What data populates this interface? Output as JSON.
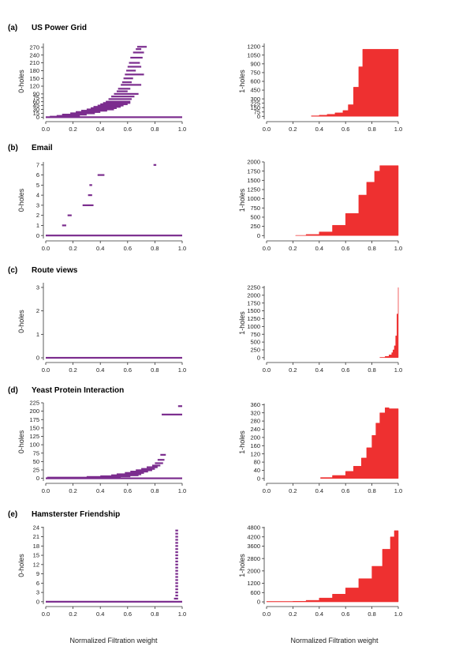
{
  "colors": {
    "zero": "#7b2d8e",
    "one": "#ee3030"
  },
  "xlabel": "Normalized Filtration weight",
  "panels": [
    {
      "label": "(a)",
      "title": "US Power Grid"
    },
    {
      "label": "(b)",
      "title": "Email"
    },
    {
      "label": "(c)",
      "title": "Route views"
    },
    {
      "label": "(d)",
      "title": "Yeast Protein Interaction"
    },
    {
      "label": "(e)",
      "title": "Hamsterster Friendship"
    }
  ],
  "chart_data": [
    {
      "type": "barcode",
      "panel": "(a)",
      "ylabel": "0-holes",
      "xlim": [
        0,
        1
      ],
      "ylim": [
        -8,
        285
      ],
      "xticks": [
        "0.0",
        "0.2",
        "0.4",
        "0.6",
        "0.8",
        "1.0"
      ],
      "yticks": [
        0,
        15,
        30,
        45,
        60,
        75,
        90,
        120,
        150,
        180,
        210,
        240,
        270
      ],
      "intervals": [
        [
          0,
          1.0,
          0
        ],
        [
          0.03,
          0.15,
          2
        ],
        [
          0.08,
          0.25,
          5
        ],
        [
          0.12,
          0.3,
          10
        ],
        [
          0.18,
          0.36,
          15
        ],
        [
          0.22,
          0.4,
          20
        ],
        [
          0.26,
          0.45,
          25
        ],
        [
          0.3,
          0.5,
          30
        ],
        [
          0.33,
          0.52,
          35
        ],
        [
          0.35,
          0.55,
          40
        ],
        [
          0.38,
          0.57,
          45
        ],
        [
          0.4,
          0.6,
          50
        ],
        [
          0.42,
          0.62,
          55
        ],
        [
          0.44,
          0.62,
          60
        ],
        [
          0.46,
          0.63,
          70
        ],
        [
          0.48,
          0.65,
          80
        ],
        [
          0.5,
          0.68,
          90
        ],
        [
          0.52,
          0.6,
          100
        ],
        [
          0.53,
          0.62,
          110
        ],
        [
          0.55,
          0.7,
          125
        ],
        [
          0.56,
          0.63,
          135
        ],
        [
          0.57,
          0.64,
          150
        ],
        [
          0.58,
          0.72,
          165
        ],
        [
          0.59,
          0.66,
          180
        ],
        [
          0.6,
          0.7,
          195
        ],
        [
          0.61,
          0.69,
          210
        ],
        [
          0.62,
          0.71,
          230
        ],
        [
          0.64,
          0.72,
          250
        ],
        [
          0.66,
          0.7,
          263
        ],
        [
          0.67,
          0.74,
          272
        ]
      ]
    },
    {
      "type": "area",
      "panel": "(a)",
      "ylabel": "1-holes",
      "xlim": [
        0,
        1
      ],
      "ylim": [
        -50,
        1250
      ],
      "xticks": [
        "0.0",
        "0.2",
        "0.4",
        "0.6",
        "0.8",
        "1.0"
      ],
      "yticks": [
        0,
        75,
        150,
        225,
        300,
        450,
        600,
        750,
        900,
        1050,
        1200
      ],
      "x": [
        0.34,
        0.4,
        0.46,
        0.52,
        0.58,
        0.62,
        0.66,
        0.7,
        0.73,
        1.0
      ],
      "y": [
        10,
        20,
        35,
        60,
        100,
        200,
        500,
        850,
        1150,
        1155
      ]
    },
    {
      "type": "barcode",
      "panel": "(b)",
      "ylabel": "0-holes",
      "xlim": [
        0,
        1
      ],
      "ylim": [
        -0.3,
        7.3
      ],
      "xticks": [
        "0.0",
        "0.2",
        "0.4",
        "0.6",
        "0.8",
        "1.0"
      ],
      "yticks": [
        0,
        1,
        2,
        3,
        4,
        5,
        6,
        7
      ],
      "intervals": [
        [
          0,
          1.0,
          0
        ],
        [
          0.12,
          0.15,
          1
        ],
        [
          0.16,
          0.19,
          2
        ],
        [
          0.27,
          0.35,
          3
        ],
        [
          0.31,
          0.34,
          4
        ],
        [
          0.32,
          0.34,
          5
        ],
        [
          0.38,
          0.43,
          6
        ],
        [
          0.79,
          0.81,
          7
        ]
      ]
    },
    {
      "type": "area",
      "panel": "(b)",
      "ylabel": "1-holes",
      "xlim": [
        0,
        1
      ],
      "ylim": [
        -80,
        2000
      ],
      "xticks": [
        "0.0",
        "0.2",
        "0.4",
        "0.6",
        "0.8",
        "1.0"
      ],
      "yticks": [
        0,
        250,
        500,
        750,
        1000,
        1250,
        1500,
        1750,
        2000
      ],
      "x": [
        0.22,
        0.3,
        0.4,
        0.5,
        0.6,
        0.7,
        0.76,
        0.82,
        0.86,
        1.0
      ],
      "y": [
        5,
        30,
        100,
        280,
        600,
        1100,
        1450,
        1750,
        1900,
        1900
      ]
    },
    {
      "type": "barcode",
      "panel": "(c)",
      "ylabel": "0-holes",
      "xlim": [
        0,
        1
      ],
      "ylim": [
        -0.1,
        3.2
      ],
      "xticks": [
        "0.0",
        "0.2",
        "0.4",
        "0.6",
        "0.8",
        "1.0"
      ],
      "yticks": [
        0,
        1,
        2,
        3
      ],
      "intervals": [
        [
          0,
          1.0,
          0
        ]
      ]
    },
    {
      "type": "area",
      "panel": "(c)",
      "ylabel": "1-holes",
      "xlim": [
        0,
        1
      ],
      "ylim": [
        -80,
        2300
      ],
      "xticks": [
        "0.0",
        "0.2",
        "0.4",
        "0.6",
        "0.8",
        "1.0"
      ],
      "yticks": [
        0,
        250,
        500,
        750,
        1000,
        1250,
        1500,
        1750,
        2000,
        2250
      ],
      "x": [
        0.86,
        0.9,
        0.93,
        0.95,
        0.96,
        0.97,
        0.98,
        0.99,
        1.0
      ],
      "y": [
        10,
        40,
        90,
        160,
        250,
        380,
        700,
        1400,
        2250
      ]
    },
    {
      "type": "barcode",
      "panel": "(d)",
      "ylabel": "0-holes",
      "xlim": [
        0,
        1
      ],
      "ylim": [
        -8,
        225
      ],
      "xticks": [
        "0.0",
        "0.2",
        "0.4",
        "0.6",
        "0.8",
        "1.0"
      ],
      "yticks": [
        0,
        25,
        50,
        75,
        100,
        125,
        150,
        175,
        200,
        225
      ],
      "intervals": [
        [
          0,
          1.0,
          0
        ],
        [
          0.01,
          0.35,
          2
        ],
        [
          0.3,
          0.55,
          4
        ],
        [
          0.4,
          0.62,
          6
        ],
        [
          0.48,
          0.68,
          9
        ],
        [
          0.52,
          0.7,
          12
        ],
        [
          0.58,
          0.72,
          16
        ],
        [
          0.62,
          0.75,
          20
        ],
        [
          0.66,
          0.78,
          24
        ],
        [
          0.7,
          0.8,
          28
        ],
        [
          0.74,
          0.82,
          33
        ],
        [
          0.78,
          0.84,
          38
        ],
        [
          0.8,
          0.86,
          45
        ],
        [
          0.82,
          0.87,
          55
        ],
        [
          0.84,
          0.88,
          70
        ],
        [
          0.85,
          1.0,
          190
        ],
        [
          0.97,
          1.0,
          215
        ]
      ]
    },
    {
      "type": "area",
      "panel": "(d)",
      "ylabel": "1-holes",
      "xlim": [
        0,
        1
      ],
      "ylim": [
        -12,
        365
      ],
      "xticks": [
        "0.0",
        "0.2",
        "0.4",
        "0.6",
        "0.8",
        "1.0"
      ],
      "yticks": [
        0,
        40,
        80,
        120,
        160,
        200,
        240,
        280,
        320,
        360
      ],
      "x": [
        0.41,
        0.5,
        0.6,
        0.66,
        0.72,
        0.76,
        0.8,
        0.83,
        0.86,
        0.9,
        0.93,
        1.0
      ],
      "y": [
        5,
        15,
        35,
        60,
        100,
        150,
        210,
        270,
        320,
        345,
        340,
        340
      ]
    },
    {
      "type": "barcode",
      "panel": "(e)",
      "ylabel": "0-holes",
      "xlim": [
        0,
        1
      ],
      "ylim": [
        -0.8,
        24.2
      ],
      "xticks": [
        "0.0",
        "0.2",
        "0.4",
        "0.6",
        "0.8",
        "1.0"
      ],
      "yticks": [
        0,
        3,
        6,
        9,
        12,
        15,
        18,
        21,
        24
      ],
      "intervals": [
        [
          0,
          1.0,
          0
        ],
        [
          0.94,
          0.97,
          1
        ],
        [
          0.95,
          0.97,
          2
        ],
        [
          0.95,
          0.97,
          3
        ],
        [
          0.95,
          0.97,
          4
        ],
        [
          0.95,
          0.97,
          5
        ],
        [
          0.95,
          0.97,
          6
        ],
        [
          0.95,
          0.97,
          7
        ],
        [
          0.95,
          0.97,
          8
        ],
        [
          0.95,
          0.97,
          9
        ],
        [
          0.95,
          0.97,
          10
        ],
        [
          0.95,
          0.97,
          11
        ],
        [
          0.95,
          0.97,
          12
        ],
        [
          0.95,
          0.97,
          13
        ],
        [
          0.95,
          0.97,
          14
        ],
        [
          0.95,
          0.97,
          15
        ],
        [
          0.95,
          0.97,
          16
        ],
        [
          0.95,
          0.97,
          17
        ],
        [
          0.95,
          0.97,
          18
        ],
        [
          0.95,
          0.97,
          19
        ],
        [
          0.95,
          0.97,
          20
        ],
        [
          0.95,
          0.97,
          21
        ],
        [
          0.95,
          0.97,
          22
        ],
        [
          0.95,
          0.97,
          23
        ]
      ]
    },
    {
      "type": "area",
      "panel": "(e)",
      "ylabel": "1-holes",
      "xlim": [
        0,
        1
      ],
      "ylim": [
        -150,
        4850
      ],
      "xticks": [
        "0.0",
        "0.2",
        "0.4",
        "0.6",
        "0.8",
        "1.0"
      ],
      "yticks": [
        0,
        600,
        1200,
        2000,
        2800,
        3600,
        4200,
        4800
      ],
      "x": [
        0.0,
        0.2,
        0.3,
        0.4,
        0.5,
        0.6,
        0.7,
        0.8,
        0.88,
        0.94,
        0.97,
        1.0
      ],
      "y": [
        30,
        40,
        100,
        250,
        500,
        900,
        1500,
        2300,
        3400,
        4200,
        4600,
        4600
      ]
    }
  ]
}
